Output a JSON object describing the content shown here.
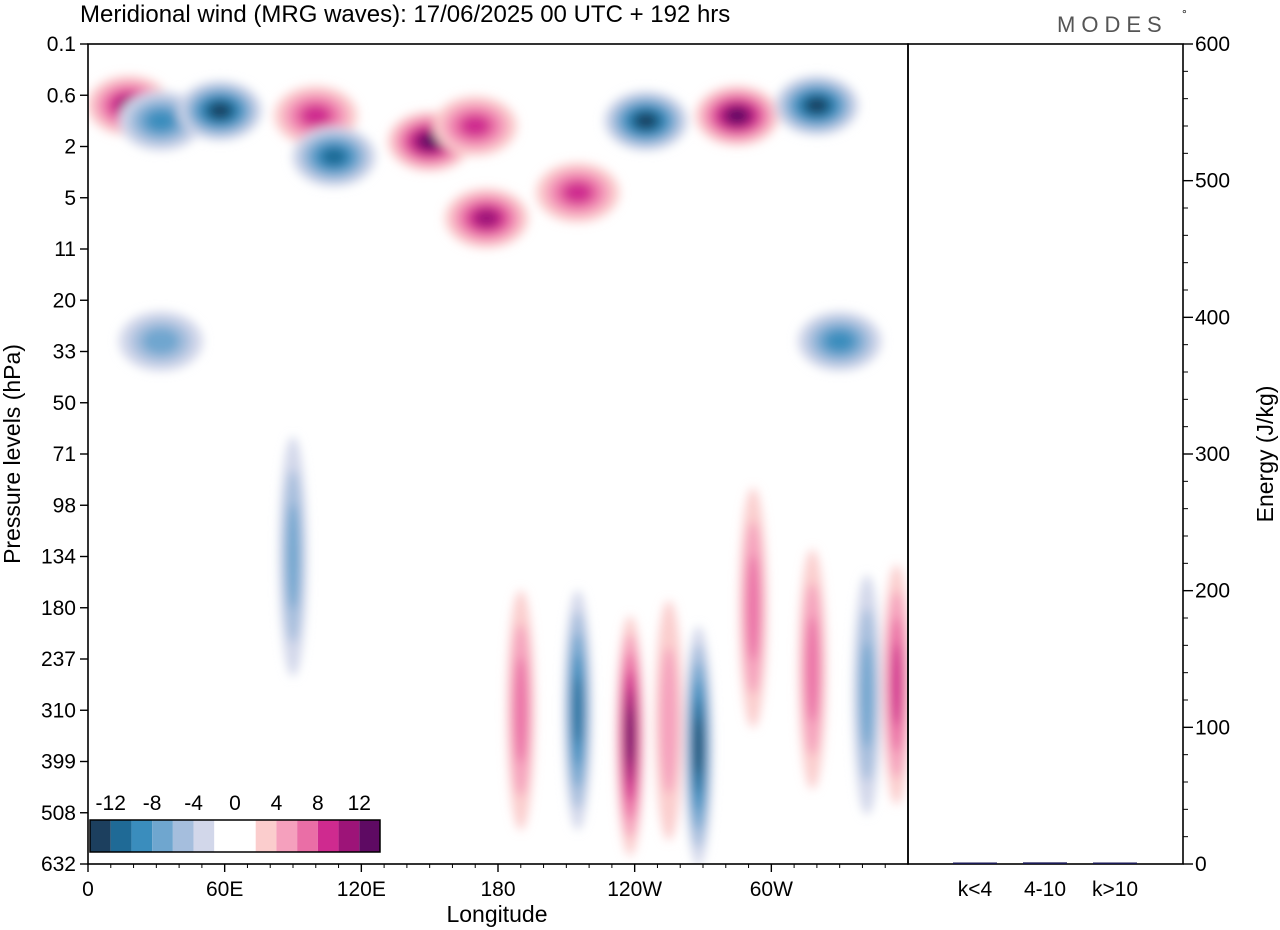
{
  "header": {
    "title": "Meridional wind (MRG waves):  17/06/2025  00 UTC  + 192 hrs",
    "brand": "MODES",
    "brand_mark": "°"
  },
  "chart_data": [
    {
      "type": "heatmap",
      "title": "Meridional wind (MRG waves):  17/06/2025  00 UTC  + 192 hrs",
      "xlabel": "Longitude",
      "ylabel": "Pressure levels (hPa)",
      "x_ticks": [
        {
          "lon": 0,
          "label": "0"
        },
        {
          "lon": 60,
          "label": "60E"
        },
        {
          "lon": 120,
          "label": "120E"
        },
        {
          "lon": 180,
          "label": "180"
        },
        {
          "lon": 240,
          "label": "120W"
        },
        {
          "lon": 300,
          "label": "60W"
        }
      ],
      "xlim": [
        0,
        360
      ],
      "y_levels": [
        "0.1",
        "0.6",
        "2",
        "5",
        "11",
        "20",
        "33",
        "50",
        "71",
        "98",
        "134",
        "180",
        "237",
        "310",
        "399",
        "508",
        "632"
      ],
      "colorbar": {
        "labels": [
          "-12",
          "-8",
          "-4",
          "0",
          "4",
          "8",
          "12"
        ],
        "colors": [
          "#1c3f5e",
          "#1f6a96",
          "#3a8dbd",
          "#6fa6cf",
          "#a5bedd",
          "#d2d7ea",
          "#ffffff",
          "#ffffff",
          "#fbcdcd",
          "#f5a0bd",
          "#ea6ea6",
          "#cf2a8f",
          "#9d1478",
          "#5e0a63"
        ]
      },
      "features": [
        {
          "lon": 18,
          "level": 1.2,
          "value": 10
        },
        {
          "lon": 32,
          "level": 1.5,
          "value": -8
        },
        {
          "lon": 58,
          "level": 1.3,
          "value": -12
        },
        {
          "lon": 100,
          "level": 1.4,
          "value": 8
        },
        {
          "lon": 108,
          "level": 2.2,
          "value": -10
        },
        {
          "lon": 150,
          "level": 1.9,
          "value": 12
        },
        {
          "lon": 170,
          "level": 1.6,
          "value": 8
        },
        {
          "lon": 215,
          "level": 2.9,
          "value": 8
        },
        {
          "lon": 245,
          "level": 1.5,
          "value": -16
        },
        {
          "lon": 285,
          "level": 1.4,
          "value": 12
        },
        {
          "lon": 320,
          "level": 1.2,
          "value": -12
        },
        {
          "lon": 175,
          "level": 3.4,
          "value": 10
        },
        {
          "lon": 330,
          "level": 5.8,
          "value": -8
        },
        {
          "lon": 32,
          "level": 5.8,
          "value": -6
        },
        {
          "lon": 90,
          "level": 10.0,
          "value": -6
        },
        {
          "lon": 190,
          "level": 13.0,
          "value": 6
        },
        {
          "lon": 215,
          "level": 13.0,
          "value": -10
        },
        {
          "lon": 238,
          "level": 13.5,
          "value": 12
        },
        {
          "lon": 255,
          "level": 13.2,
          "value": 4
        },
        {
          "lon": 268,
          "level": 13.7,
          "value": -14
        },
        {
          "lon": 292,
          "level": 11.0,
          "value": 6
        },
        {
          "lon": 318,
          "level": 12.2,
          "value": 6
        },
        {
          "lon": 342,
          "level": 12.7,
          "value": -6
        },
        {
          "lon": 355,
          "level": 12.5,
          "value": 8
        }
      ]
    },
    {
      "type": "bar",
      "categories": [
        "k<4",
        "4-10",
        "k>10"
      ],
      "values": [
        0.3,
        1.2,
        0.2
      ],
      "ylabel": "Energy (J/kg)",
      "ylim": [
        0,
        600
      ],
      "y_ticks": [
        0,
        100,
        200,
        300,
        400,
        500,
        600
      ],
      "bar_color": "#1a1a55"
    }
  ]
}
